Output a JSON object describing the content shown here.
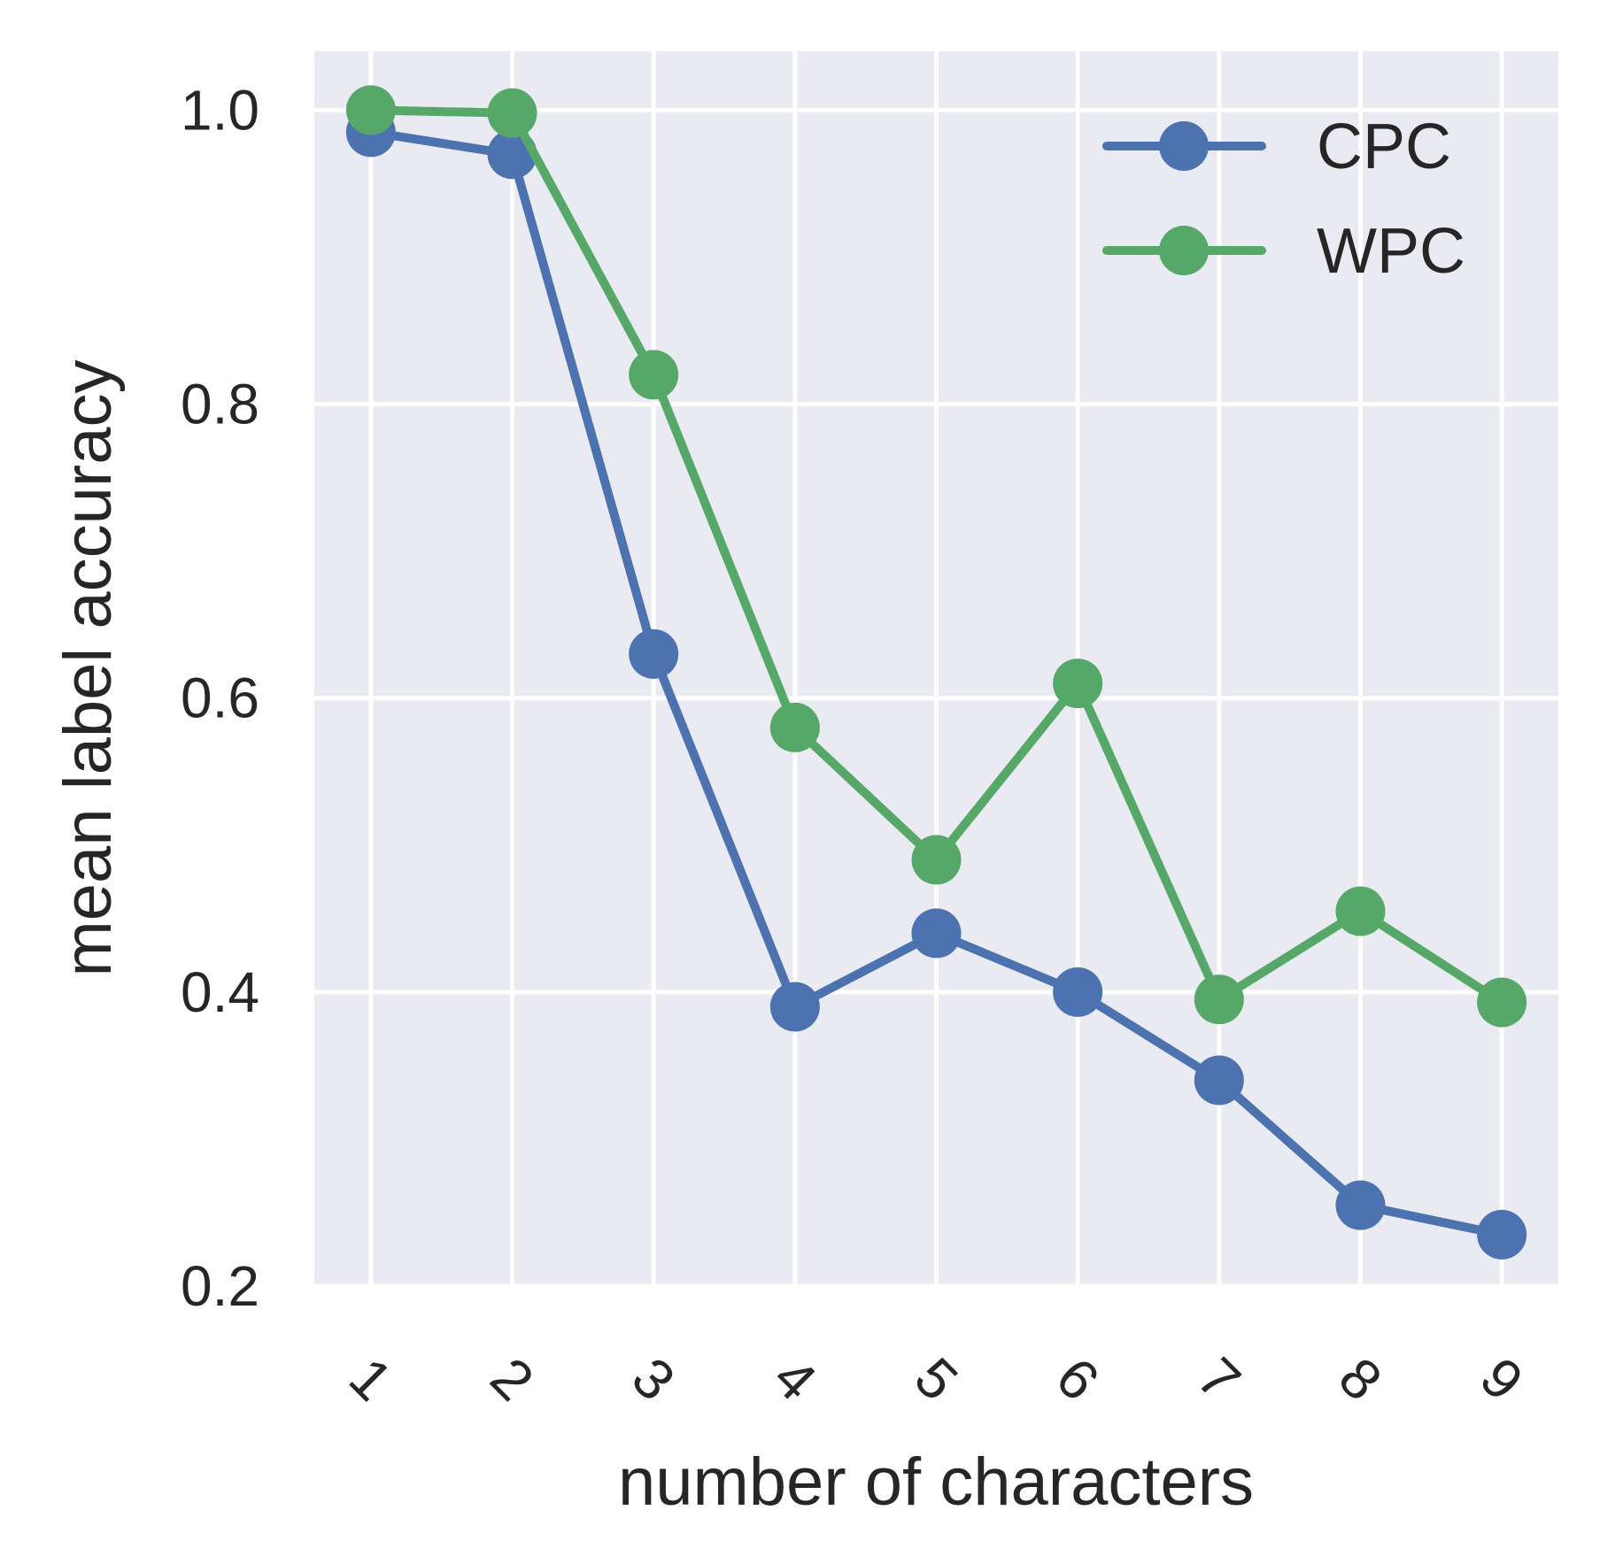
{
  "chart_data": {
    "type": "line",
    "xlabel": "number of characters",
    "ylabel": "mean label accuracy",
    "x": [
      1,
      2,
      3,
      4,
      5,
      6,
      7,
      8,
      9
    ],
    "x_tick_labels": [
      "1",
      "2",
      "3",
      "4",
      "5",
      "6",
      "7",
      "8",
      "9"
    ],
    "y_ticks": [
      0.2,
      0.4,
      0.6,
      0.8,
      1.0
    ],
    "y_tick_labels": [
      "0.2",
      "0.4",
      "0.6",
      "0.8",
      "1.0"
    ],
    "xlim": [
      0.6,
      9.4
    ],
    "ylim": [
      0.2,
      1.04
    ],
    "grid": true,
    "legend_position": "top-right",
    "series": [
      {
        "name": "CPC",
        "color": "#4c72b0",
        "values": [
          0.985,
          0.97,
          0.63,
          0.39,
          0.44,
          0.4,
          0.34,
          0.255,
          0.235
        ]
      },
      {
        "name": "WPC",
        "color": "#55a868",
        "values": [
          1.0,
          0.998,
          0.82,
          0.58,
          0.49,
          0.61,
          0.395,
          0.455,
          0.393
        ]
      }
    ]
  }
}
